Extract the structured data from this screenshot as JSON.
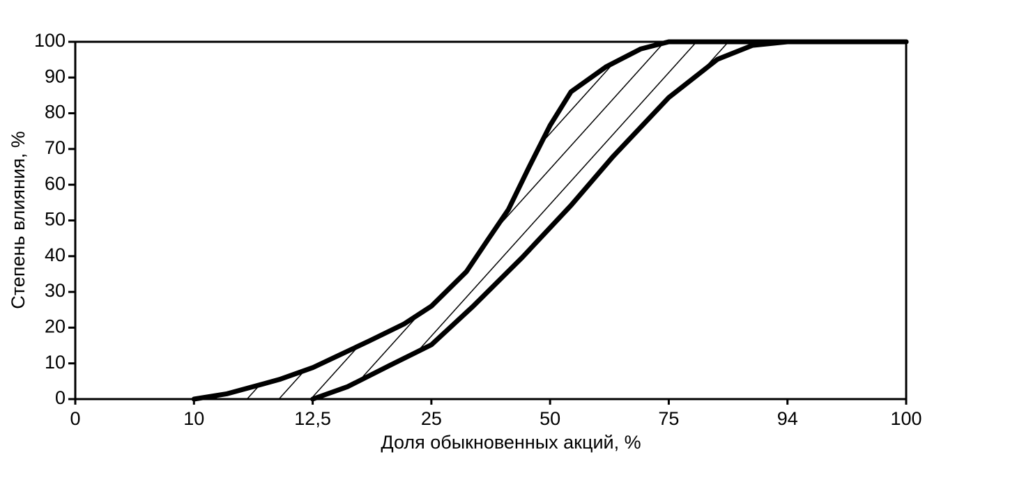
{
  "chart_data": {
    "type": "line",
    "x_label": "Доля обыкновенных акций, %",
    "y_label": "Степень влияния, %",
    "xlim": [
      0,
      100
    ],
    "ylim": [
      0,
      100
    ],
    "xticks": [
      0,
      10,
      {
        "value": 12.5,
        "label": "12,5"
      },
      25,
      50,
      75,
      94,
      100
    ],
    "yticks": [
      0,
      10,
      20,
      30,
      40,
      50,
      60,
      70,
      80,
      90,
      100
    ],
    "series": [
      {
        "color": "#000000",
        "x": [
          10,
          10.7,
          11.8,
          12.5,
          18.4,
          22.1,
          25,
          32.4,
          36.8,
          41.2,
          45.6,
          50,
          54.4,
          61.8,
          69.1,
          75,
          100
        ],
        "values": [
          0,
          1.5,
          5.5,
          8.8,
          16.2,
          21,
          26,
          35.7,
          44.4,
          53,
          65,
          76.6,
          86,
          93,
          98,
          100,
          100
        ]
      },
      {
        "color": "#000000",
        "x": [
          12.5,
          16.2,
          20.6,
          25,
          33.8,
          44.1,
          54.4,
          63.2,
          75,
          82.8,
          88.4,
          94,
          100
        ],
        "values": [
          0,
          3.5,
          9.4,
          15.2,
          26,
          39.6,
          54.2,
          67.8,
          84.4,
          95.1,
          99,
          100,
          100
        ]
      }
    ]
  }
}
